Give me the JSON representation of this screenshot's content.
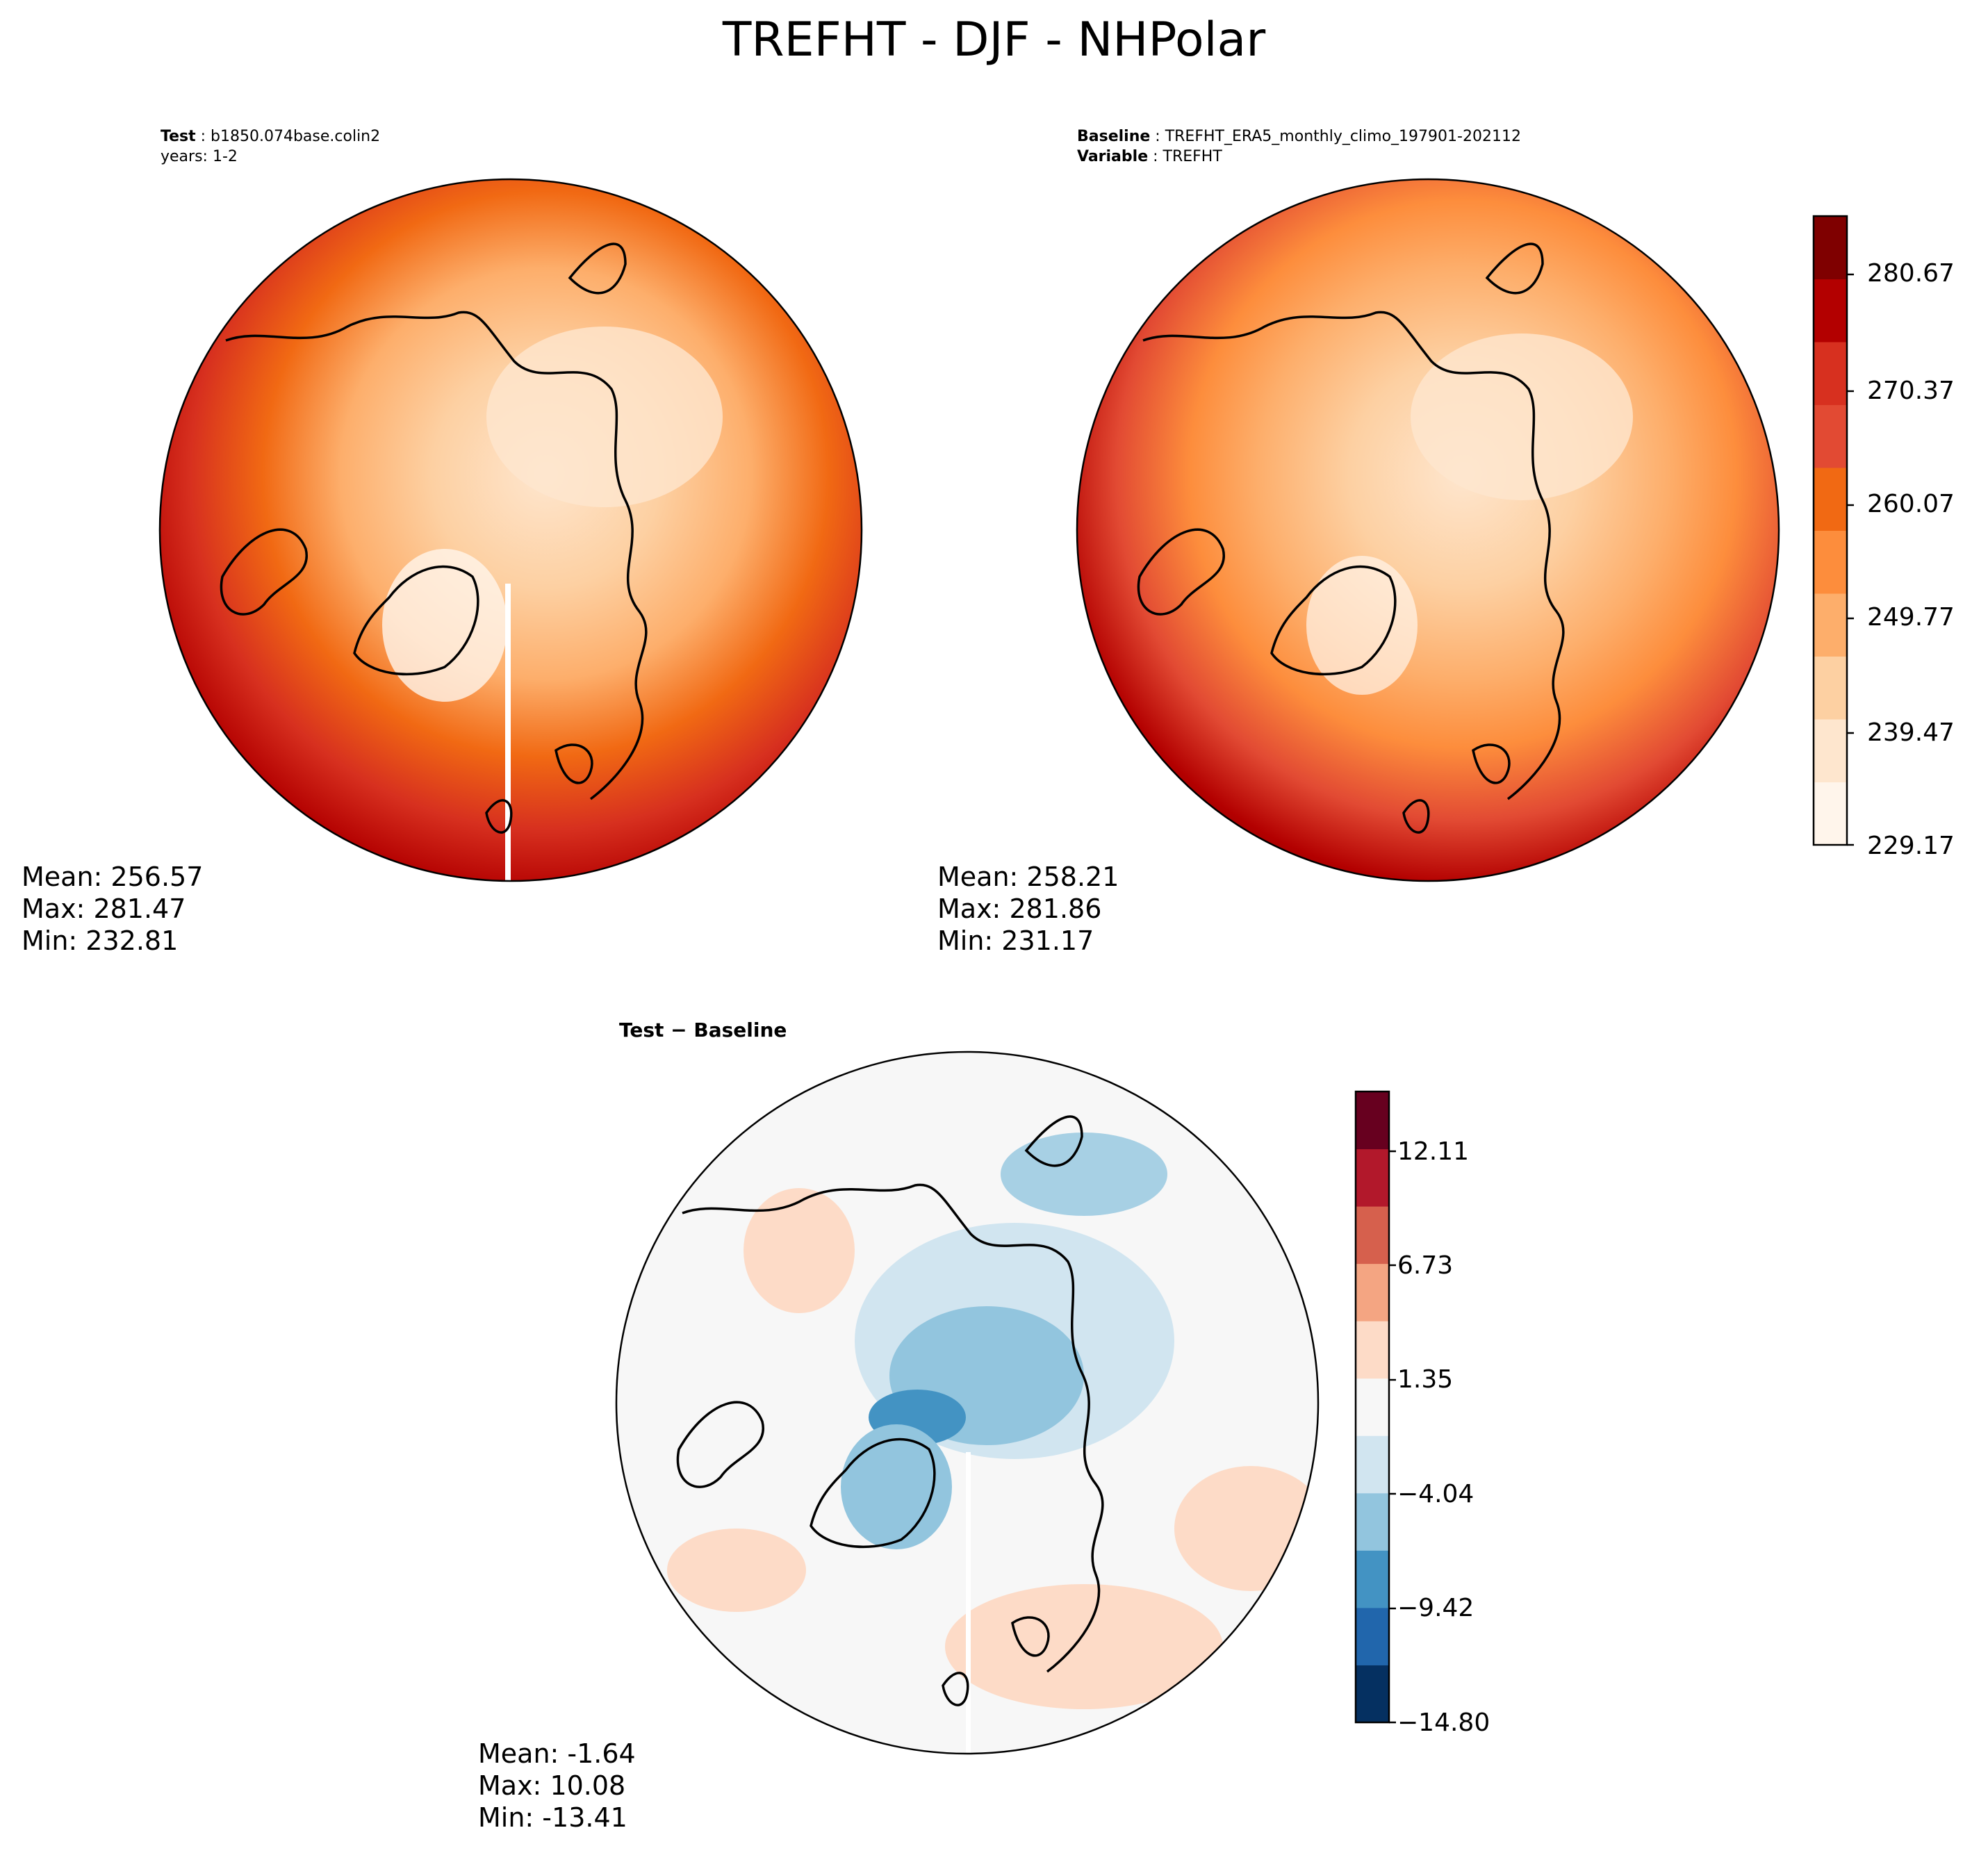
{
  "figure": {
    "title": "TREFHT - DJF - NHPolar"
  },
  "panels": {
    "test": {
      "label_key": "Test",
      "label_value": "b1850.074base.colin2",
      "subtitle": "years: 1-2",
      "stats": {
        "mean": "Mean: 256.57",
        "max": "Max: 281.47",
        "min": "Min: 232.81"
      }
    },
    "baseline": {
      "label_key": "Baseline",
      "label_value": "TREFHT_ERA5_monthly_climo_197901-202112",
      "variable_key": "Variable",
      "variable_value": "TREFHT",
      "stats": {
        "mean": "Mean: 258.21",
        "max": "Max: 281.86",
        "min": "Min: 231.17"
      }
    },
    "difference": {
      "title": "Test − Baseline",
      "stats": {
        "mean": "Mean: -1.64",
        "max": "Max: 10.08",
        "min": "Min: -13.41"
      }
    }
  },
  "colorbars": {
    "absolute": {
      "ticks": [
        "280.67",
        "270.37",
        "260.07",
        "249.77",
        "239.47",
        "229.17"
      ],
      "colors": [
        "#fff5eb",
        "#fee6ce",
        "#fdd0a2",
        "#fdae6b",
        "#fd8d3c",
        "#f16913",
        "#e24a33",
        "#d7301f",
        "#b30000",
        "#7f0000"
      ]
    },
    "difference": {
      "ticks": [
        "12.11",
        "6.73",
        "1.35",
        "−4.04",
        "−9.42",
        "−14.80"
      ],
      "colors": [
        "#053061",
        "#2166ac",
        "#4393c3",
        "#92c5de",
        "#d1e5f0",
        "#f7f7f7",
        "#fddbc7",
        "#f4a582",
        "#d6604d",
        "#b2182b",
        "#67001f"
      ]
    }
  },
  "chart_data": [
    {
      "type": "heatmap",
      "title": "Test: b1850.074base.colin2",
      "subtitle": "years: 1-2",
      "projection": "North Polar Stereographic",
      "season": "DJF",
      "variable": "TREFHT",
      "stats": {
        "mean": 256.57,
        "max": 281.47,
        "min": 232.81
      },
      "colorbar_range": [
        229.17,
        285.82
      ],
      "colorbar_ticks": [
        229.17,
        239.47,
        249.77,
        260.07,
        270.37,
        280.67
      ]
    },
    {
      "type": "heatmap",
      "title": "Baseline: TREFHT_ERA5_monthly_climo_197901-202112",
      "subtitle": "Variable: TREFHT",
      "projection": "North Polar Stereographic",
      "season": "DJF",
      "variable": "TREFHT",
      "stats": {
        "mean": 258.21,
        "max": 281.86,
        "min": 231.17
      },
      "colorbar_range": [
        229.17,
        285.82
      ],
      "colorbar_ticks": [
        229.17,
        239.47,
        249.77,
        260.07,
        270.37,
        280.67
      ]
    },
    {
      "type": "heatmap",
      "title": "Test − Baseline",
      "projection": "North Polar Stereographic",
      "season": "DJF",
      "variable": "TREFHT",
      "stats": {
        "mean": -1.64,
        "max": 10.08,
        "min": -13.41
      },
      "colorbar_range": [
        -14.8,
        14.8
      ],
      "colorbar_ticks": [
        -14.8,
        -9.42,
        -4.04,
        1.35,
        6.73,
        12.11
      ]
    }
  ]
}
